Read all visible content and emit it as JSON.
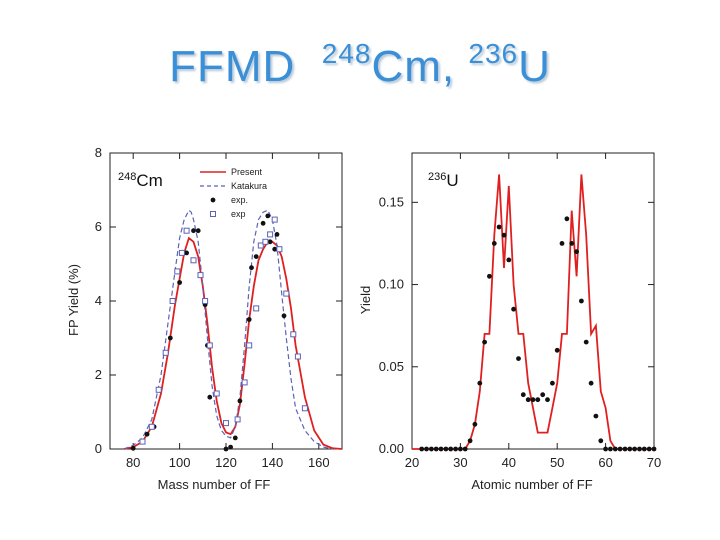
{
  "slide": {
    "title_prefix": "FFMD",
    "iso1_mass": "248",
    "iso1_sym": "Cm,",
    "iso2_mass": "236",
    "iso2_sym": "U"
  },
  "colors": {
    "title": "#3a8fd6",
    "present": "#e02020",
    "katakura": "#5c62b8",
    "points": "#111111"
  },
  "chart_data": [
    {
      "type": "line",
      "panel_label_mass": "248",
      "panel_label_sym": "Cm",
      "xlabel": "Mass number of FF",
      "ylabel": "FP Yield (%)",
      "xlim": [
        70,
        170
      ],
      "ylim": [
        0,
        8
      ],
      "xticks": [
        80,
        100,
        120,
        140,
        160
      ],
      "yticks": [
        0,
        2,
        4,
        6,
        8
      ],
      "legend": [
        "Present",
        "Katakura",
        "exp.",
        "exp"
      ],
      "legend_position": "top-right",
      "series": [
        {
          "name": "Present",
          "style": "solid-red",
          "x": [
            76,
            80,
            84,
            88,
            92,
            95,
            98,
            100,
            102,
            104,
            106,
            108,
            110,
            112,
            114,
            116,
            118,
            120,
            122,
            124,
            126,
            128,
            130,
            132,
            134,
            136,
            138,
            140,
            142,
            144,
            146,
            148,
            150,
            154,
            158,
            162,
            166,
            170
          ],
          "y": [
            0.0,
            0.05,
            0.2,
            0.6,
            1.5,
            2.6,
            3.9,
            4.6,
            5.3,
            5.7,
            5.6,
            5.2,
            4.4,
            3.4,
            2.2,
            1.3,
            0.7,
            0.45,
            0.4,
            0.6,
            1.2,
            2.3,
            3.5,
            4.4,
            5.1,
            5.4,
            5.6,
            5.6,
            5.5,
            5.2,
            4.6,
            3.8,
            2.8,
            1.4,
            0.5,
            0.12,
            0.02,
            0.0
          ]
        },
        {
          "name": "Katakura",
          "style": "dashed-blue",
          "x": [
            76,
            80,
            84,
            88,
            92,
            95,
            98,
            100,
            102,
            104,
            105,
            106,
            108,
            110,
            112,
            114,
            116,
            118,
            120,
            122,
            124,
            126,
            128,
            130,
            132,
            134,
            136,
            138,
            140,
            142,
            144,
            146,
            148,
            150,
            154,
            158,
            162,
            166
          ],
          "y": [
            0.0,
            0.1,
            0.3,
            0.8,
            2.0,
            3.4,
            4.8,
            5.7,
            6.2,
            6.45,
            6.4,
            6.2,
            5.6,
            4.4,
            3.0,
            1.7,
            0.9,
            0.5,
            0.35,
            0.3,
            0.6,
            1.4,
            2.8,
            4.4,
            5.6,
            6.2,
            6.4,
            6.45,
            6.2,
            5.5,
            4.2,
            3.0,
            1.9,
            1.1,
            0.5,
            0.2,
            0.05,
            0.0
          ]
        },
        {
          "name": "exp.",
          "style": "filled-dots",
          "x": [
            80,
            86,
            89,
            96,
            100,
            103,
            106,
            108,
            111,
            112,
            113,
            120,
            122,
            124,
            126,
            130,
            131,
            133,
            136,
            138,
            139,
            141,
            142,
            145
          ],
          "y": [
            0.02,
            0.4,
            0.6,
            3.0,
            4.5,
            5.3,
            5.9,
            5.9,
            3.9,
            2.8,
            1.4,
            0.0,
            0.05,
            0.3,
            1.3,
            3.5,
            4.9,
            5.2,
            6.1,
            6.3,
            5.6,
            5.4,
            5.8,
            3.6
          ]
        },
        {
          "name": "exp",
          "style": "open-squares",
          "x": [
            84,
            88,
            91,
            94,
            97,
            99,
            101,
            103,
            106,
            109,
            111,
            113,
            116,
            120,
            125,
            128,
            130,
            133,
            135,
            137,
            139,
            141,
            143,
            146,
            149,
            151,
            154
          ],
          "y": [
            0.2,
            0.6,
            1.6,
            2.6,
            4.0,
            4.8,
            5.3,
            5.9,
            5.1,
            4.7,
            4.0,
            2.8,
            1.5,
            0.7,
            0.8,
            1.8,
            2.8,
            3.8,
            5.5,
            5.6,
            5.8,
            6.2,
            5.4,
            4.2,
            3.1,
            2.5,
            1.1
          ]
        }
      ]
    },
    {
      "type": "line",
      "panel_label_mass": "236",
      "panel_label_sym": "U",
      "xlabel": "Atomic number of FF",
      "ylabel": "Yield",
      "xlim": [
        20,
        70
      ],
      "ylim": [
        0,
        0.18
      ],
      "xticks": [
        20,
        30,
        40,
        50,
        60,
        70
      ],
      "yticks": [
        0.0,
        0.05,
        0.1,
        0.15
      ],
      "ytick_labels": [
        "0.00",
        "0.05",
        "0.10",
        "0.15"
      ],
      "series": [
        {
          "name": "Present",
          "style": "solid-red",
          "x": [
            20,
            22,
            24,
            26,
            28,
            30,
            31,
            32,
            33,
            34,
            35,
            36,
            37,
            38,
            39,
            40,
            41,
            42,
            43,
            44,
            45,
            46,
            47,
            48,
            49,
            50,
            51,
            52,
            53,
            54,
            55,
            56,
            57,
            58,
            59,
            60,
            61,
            62,
            64,
            66,
            70
          ],
          "y": [
            0.0,
            0.0,
            0.0,
            0.0,
            0.0,
            0.0,
            0.0,
            0.005,
            0.015,
            0.035,
            0.07,
            0.07,
            0.13,
            0.167,
            0.11,
            0.16,
            0.1,
            0.07,
            0.07,
            0.04,
            0.025,
            0.01,
            0.01,
            0.01,
            0.025,
            0.04,
            0.07,
            0.07,
            0.145,
            0.105,
            0.167,
            0.13,
            0.07,
            0.075,
            0.035,
            0.025,
            0.005,
            0.0,
            0.0,
            0.0,
            0.0
          ]
        },
        {
          "name": "exp",
          "style": "filled-dots",
          "x": [
            22,
            23,
            24,
            25,
            26,
            27,
            28,
            29,
            30,
            31,
            32,
            33,
            34,
            35,
            36,
            37,
            38,
            39,
            40,
            41,
            42,
            43,
            44,
            45,
            46,
            47,
            48,
            49,
            50,
            51,
            52,
            53,
            54,
            55,
            56,
            57,
            58,
            59,
            60,
            61,
            62,
            63,
            64,
            65,
            66,
            67,
            68,
            69,
            70
          ],
          "y": [
            0.0,
            0.0,
            0.0,
            0.0,
            0.0,
            0.0,
            0.0,
            0.0,
            0.0,
            0.0,
            0.005,
            0.015,
            0.04,
            0.065,
            0.105,
            0.125,
            0.135,
            0.13,
            0.115,
            0.085,
            0.055,
            0.033,
            0.03,
            0.03,
            0.03,
            0.033,
            0.03,
            0.04,
            0.06,
            0.125,
            0.14,
            0.125,
            0.12,
            0.09,
            0.065,
            0.04,
            0.02,
            0.005,
            0.0,
            0.0,
            0.0,
            0.0,
            0.0,
            0.0,
            0.0,
            0.0,
            0.0,
            0.0,
            0.0
          ]
        }
      ]
    }
  ]
}
